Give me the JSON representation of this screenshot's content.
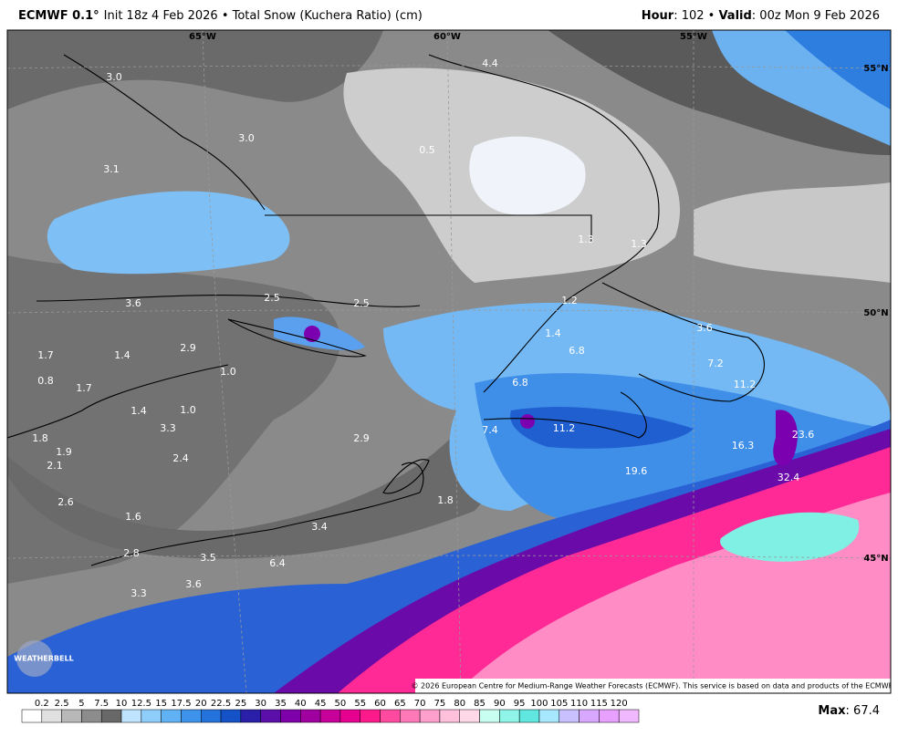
{
  "header": {
    "model": "ECMWF 0.1°",
    "info": "Init 18z 4 Feb 2026 • Total Snow (Kuchera Ratio) (cm)",
    "hour_label": "Hour",
    "hour": ": 102 • ",
    "valid_label": "Valid",
    "valid": ": 00z Mon 9 Feb 2026"
  },
  "map": {
    "lon_labels": [
      "65°W",
      "60°W",
      "55°W"
    ],
    "lat_labels": [
      "55°N",
      "50°N",
      "45°N"
    ],
    "point_labels": [
      "3.0",
      "3.0",
      "3.1",
      "0.5",
      "4.4",
      "3.6",
      "2.5",
      "2.5",
      "2.9",
      "1.4",
      "1.7",
      "0.8",
      "1.7",
      "1.0",
      "1.4",
      "1.0",
      "3.3",
      "2.9",
      "2.4",
      "1.9",
      "2.1",
      "1.8",
      "2.6",
      "1.6",
      "3.4",
      "1.8",
      "3.5",
      "2.8",
      "6.4",
      "3.6",
      "3.3",
      "1.2",
      "1.4",
      "6.8",
      "3.6",
      "7.2",
      "11.2",
      "6.8",
      "7.4",
      "11.2",
      "16.3",
      "23.6",
      "19.6",
      "32.4",
      "1.3",
      "1.3"
    ],
    "copyright": "© 2026 European Centre for Medium-Range Weather Forecasts (ECMWF). This service is based on data and products of the ECMWF.",
    "watermark": "WEATHERBELL"
  },
  "legend": {
    "labels": [
      "0.2",
      "2.5",
      "5",
      "7.5",
      "10",
      "12.5",
      "15",
      "17.5",
      "20",
      "22.5",
      "25",
      "30",
      "35",
      "40",
      "45",
      "50",
      "55",
      "60",
      "65",
      "70",
      "75",
      "80",
      "85",
      "90",
      "95",
      "100",
      "105",
      "110",
      "115",
      "120"
    ],
    "colors": [
      "#ffffff",
      "#e0e0e0",
      "#b8b8b8",
      "#8c8c8c",
      "#686868",
      "#bfe4ff",
      "#8fcdfb",
      "#61b2f5",
      "#3d93ec",
      "#2473dc",
      "#1552c8",
      "#2a1fa8",
      "#5a0fa8",
      "#7d00a8",
      "#a000a0",
      "#c8009a",
      "#e6008f",
      "#ff1a8c",
      "#ff4aa0",
      "#ff78b8",
      "#ffa0cc",
      "#ffc0dc",
      "#ffd8e8",
      "#c8fff0",
      "#8ff5e8",
      "#60e8e0",
      "#a8e8ff",
      "#c8c0ff",
      "#d8a8ff",
      "#e8a0ff",
      "#f0b8ff"
    ],
    "max_label": "Max",
    "max": ": 67.4"
  }
}
